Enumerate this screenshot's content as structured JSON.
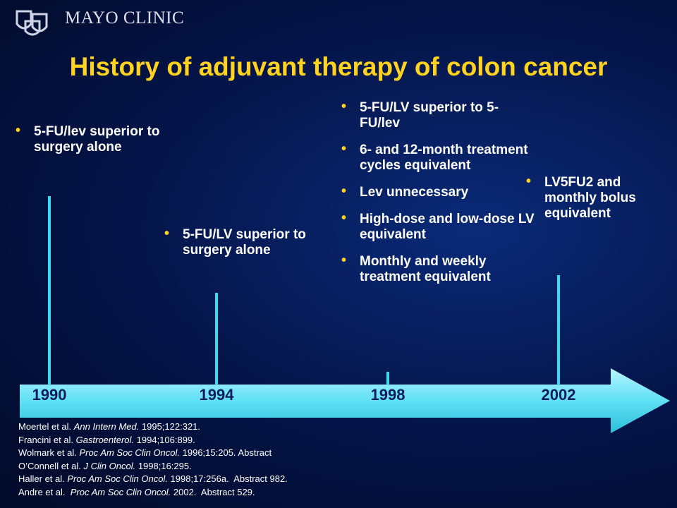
{
  "header": {
    "brand": "MAYO CLINIC",
    "title": "History of adjuvant therapy of colon cancer"
  },
  "timeline": {
    "years": [
      "1990",
      "1994",
      "1998",
      "2002"
    ]
  },
  "events": [
    {
      "bullets": [
        "5-FU/lev superior to surgery alone"
      ]
    },
    {
      "bullets": [
        "5-FU/LV superior to surgery alone"
      ]
    },
    {
      "bullets": [
        "5-FU/LV superior to 5-FU/lev",
        "6- and 12-month treatment cycles equivalent",
        "Lev unnecessary",
        "High-dose and low-dose LV equivalent",
        "Monthly and weekly treatment equivalent"
      ]
    },
    {
      "bullets": [
        "LV5FU2 and monthly bolus equivalent"
      ]
    }
  ],
  "references": [
    {
      "authors": "Moertel et al. ",
      "journal": "Ann Intern Med.",
      "details": " 1995;122:321."
    },
    {
      "authors": "Francini et al. ",
      "journal": "Gastroenterol.",
      "details": " 1994;106:899."
    },
    {
      "authors": "Wolmark et al. ",
      "journal": "Proc Am Soc Clin Oncol.",
      "details": " 1996;15:205. Abstract"
    },
    {
      "authors": "O’Connell et al. ",
      "journal": "J Clin Oncol.",
      "details": " 1998;16:295."
    },
    {
      "authors": "Haller et al. ",
      "journal": "Proc Am Soc Clin Oncol.",
      "details": " 1998;17:256a.  Abstract 982."
    },
    {
      "authors": "Andre et al.  ",
      "journal": "Proc Am Soc Clin Oncol.",
      "details": " 2002.  Abstract 529."
    }
  ]
}
